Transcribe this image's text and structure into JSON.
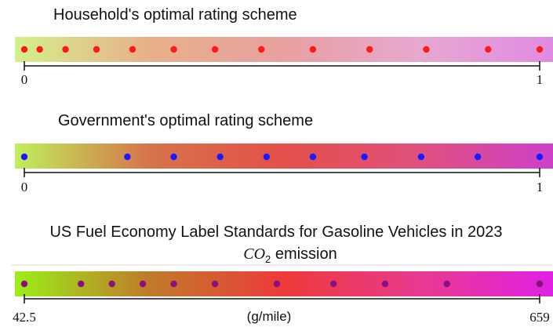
{
  "panels": [
    {
      "title": "Household's optimal rating scheme",
      "min_label": "0",
      "max_label": "1",
      "unit": "",
      "dot_color": "#ff1a1a",
      "gradient": [
        "#d4f08a",
        "#e8b08a",
        "#e8a0a0",
        "#e7a8d0",
        "#e08ae2"
      ],
      "points": [
        0,
        0.03,
        0.08,
        0.14,
        0.21,
        0.29,
        0.37,
        0.46,
        0.56,
        0.67,
        0.78,
        0.9,
        1
      ]
    },
    {
      "title": "Government's optimal rating scheme",
      "min_label": "0",
      "max_label": "1",
      "unit": "",
      "dot_color": "#1a1aff",
      "gradient": [
        "#bff05a",
        "#d6734a",
        "#e4504a",
        "#e0507e",
        "#cc40cc"
      ],
      "points": [
        0,
        0.2,
        0.29,
        0.38,
        0.47,
        0.56,
        0.66,
        0.77,
        0.88,
        1
      ]
    },
    {
      "title": "US Fuel Economy Label Standards for Gasoline Vehicles in 2023",
      "subtitle_math": "CO",
      "subtitle_sub": "2",
      "subtitle_rest": " emission",
      "min_label": "42.5",
      "max_label": "659",
      "unit": "(g/mile)",
      "dot_color": "#8a1080",
      "gradient": [
        "#9cee18",
        "#c07a2a",
        "#ee3a3a",
        "#e83a90",
        "#e020e6"
      ],
      "points": [
        0,
        0.11,
        0.17,
        0.23,
        0.29,
        0.37,
        0.49,
        0.6,
        0.7,
        0.82,
        1
      ]
    }
  ]
}
